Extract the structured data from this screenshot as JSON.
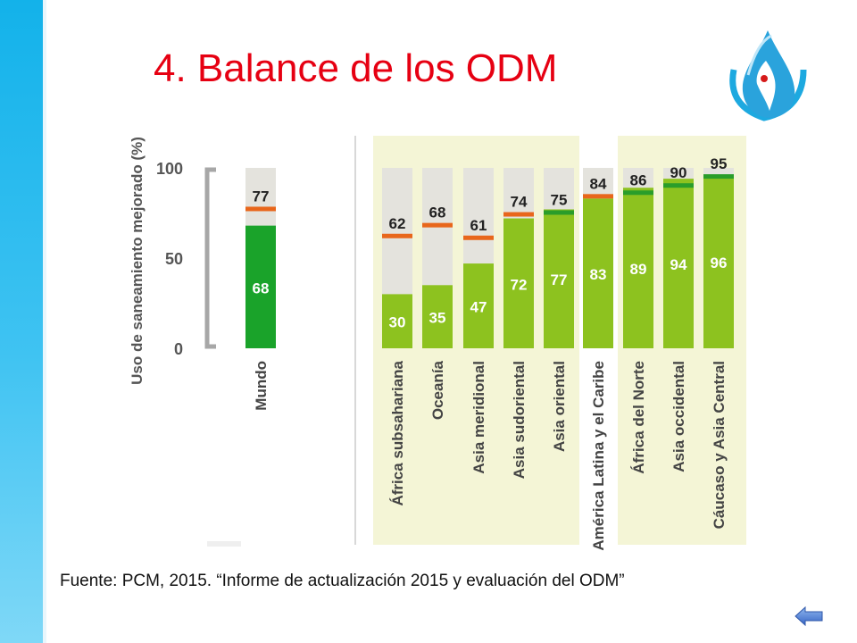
{
  "slide": {
    "title": "4. Balance de los ODM",
    "source": "Fuente: PCM, 2015. “Informe de actualización 2015 y evaluación del ODM”"
  },
  "colors": {
    "title": "#e60012",
    "side_band": "#13b2ea",
    "bar_world": "#1aa32a",
    "bar_region": "#8dc21f",
    "bar_bg": "#e4e3dd",
    "marker_orange": "#e8661b",
    "marker_green": "#2a9d2a",
    "panel_highlight": "#f4f5d6"
  },
  "chart_data": {
    "type": "bar",
    "ylabel": "Uso de saneamiento mejorado (%)",
    "yticks": [
      0,
      50,
      100
    ],
    "ylim": [
      0,
      100
    ],
    "categories": [
      "Mundo",
      "África subsahariana",
      "Oceanía",
      "Asia meridional",
      "Asia sudoriental",
      "Asia oriental",
      "América Latina y el Caribe",
      "África del Norte",
      "Asia occidental",
      "Cáucaso y Asia Central"
    ],
    "series": [
      {
        "values": [
          68,
          30,
          35,
          47,
          72,
          77,
          83,
          89,
          94,
          96
        ]
      },
      {
        "values": [
          77,
          62,
          68,
          61,
          74,
          75,
          84,
          86,
          90,
          95
        ]
      }
    ],
    "target_marker_colors": [
      "orange",
      "orange",
      "orange",
      "orange",
      "orange",
      "green",
      "orange",
      "green",
      "green",
      "green"
    ]
  }
}
